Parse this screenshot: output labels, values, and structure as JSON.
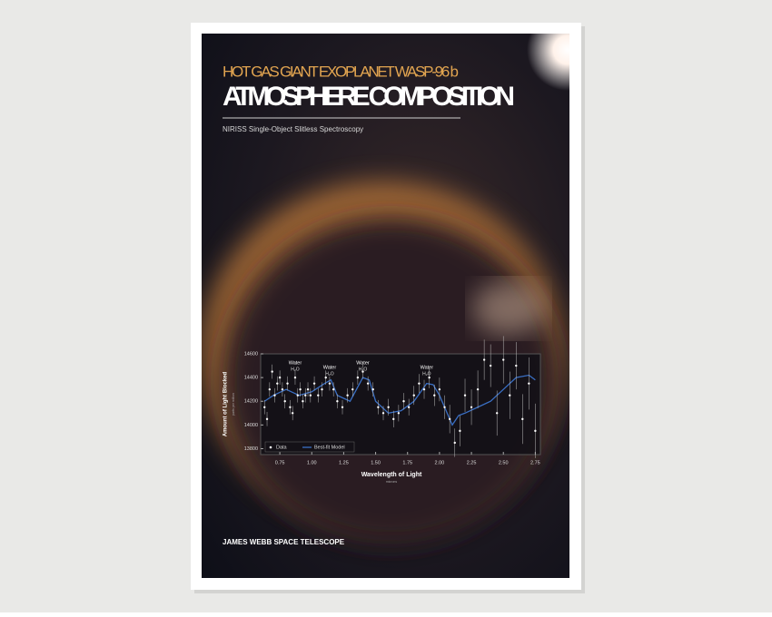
{
  "poster": {
    "supertitle": "HOT GAS GIANT EXOPLANET WASP-96 b",
    "title": "ATMOSPHERE COMPOSITION",
    "subtitle": "NIRISS Single-Object Slitless Spectroscopy",
    "footer": "JAMES WEBB SPACE TELESCOPE"
  },
  "chart_data": {
    "type": "scatter",
    "y_label": "Amount of Light Blocked",
    "y_sublabel": "parts per million",
    "x_label": "Wavelength of Light",
    "x_sublabel": "microns",
    "xlim": [
      0.6,
      2.79
    ],
    "ylim": [
      13750,
      14600
    ],
    "xticks": [
      {
        "value": 0.75,
        "label": "0.75"
      },
      {
        "value": 1,
        "label": "1.00"
      },
      {
        "value": 1.25,
        "label": "1.25"
      },
      {
        "value": 1.5,
        "label": "1.50"
      },
      {
        "value": 1.75,
        "label": "1.75"
      },
      {
        "value": 2,
        "label": "2.00"
      },
      {
        "value": 2.25,
        "label": "2.25"
      },
      {
        "value": 2.5,
        "label": "2.50"
      },
      {
        "value": 2.75,
        "label": "2.75"
      }
    ],
    "yticks": [
      13800,
      14000,
      14200,
      14400,
      14600
    ],
    "legend": "lower left",
    "annotations": [
      {
        "label": "Water",
        "sublabel": "H₂O",
        "x": 0.87
      },
      {
        "label": "Water",
        "sublabel": "H₂O",
        "x": 1.14
      },
      {
        "label": "Water",
        "sublabel": "H₂O",
        "x": 1.4
      },
      {
        "label": "Water",
        "sublabel": "H₂O",
        "x": 1.9
      }
    ],
    "series": [
      {
        "name": "Data",
        "color": "#ffffff",
        "x": [
          0.63,
          0.65,
          0.67,
          0.69,
          0.71,
          0.73,
          0.75,
          0.77,
          0.79,
          0.81,
          0.83,
          0.85,
          0.87,
          0.89,
          0.91,
          0.93,
          0.95,
          0.97,
          0.99,
          1.02,
          1.05,
          1.08,
          1.11,
          1.14,
          1.17,
          1.2,
          1.24,
          1.28,
          1.32,
          1.36,
          1.4,
          1.44,
          1.48,
          1.52,
          1.56,
          1.6,
          1.64,
          1.68,
          1.72,
          1.76,
          1.8,
          1.84,
          1.88,
          1.92,
          1.96,
          2.0,
          2.04,
          2.08,
          2.12,
          2.16,
          2.2,
          2.25,
          2.3,
          2.35,
          2.4,
          2.45,
          2.5,
          2.55,
          2.6,
          2.65,
          2.7,
          2.75
        ],
        "values": [
          14150,
          14050,
          14300,
          14450,
          14250,
          14350,
          14400,
          14300,
          14200,
          14350,
          14150,
          14100,
          14400,
          14250,
          14300,
          14200,
          14250,
          14300,
          14250,
          14350,
          14250,
          14300,
          14400,
          14350,
          14300,
          14200,
          14150,
          14250,
          14300,
          14400,
          14450,
          14350,
          14300,
          14150,
          14100,
          14150,
          14050,
          14100,
          14200,
          14150,
          14250,
          14350,
          14300,
          14400,
          14250,
          14300,
          14150,
          14050,
          13850,
          13950,
          14250,
          14150,
          14300,
          14550,
          14500,
          14100,
          14550,
          14250,
          14500,
          14050,
          14350,
          13950
        ],
        "errors": [
          60,
          60,
          60,
          60,
          60,
          60,
          60,
          60,
          60,
          60,
          60,
          60,
          60,
          60,
          60,
          60,
          60,
          60,
          60,
          60,
          60,
          60,
          60,
          60,
          60,
          60,
          60,
          60,
          60,
          60,
          60,
          60,
          60,
          60,
          60,
          70,
          70,
          70,
          70,
          70,
          80,
          80,
          80,
          90,
          90,
          100,
          100,
          120,
          120,
          130,
          140,
          150,
          160,
          170,
          180,
          190,
          200,
          200,
          200,
          210,
          220,
          230
        ]
      },
      {
        "name": "Best-fit Model",
        "color": "#3a6fc4",
        "x": [
          0.63,
          0.7,
          0.8,
          0.9,
          1.0,
          1.1,
          1.15,
          1.2,
          1.3,
          1.4,
          1.45,
          1.5,
          1.6,
          1.7,
          1.8,
          1.9,
          1.95,
          2.0,
          2.1,
          2.15,
          2.2,
          2.3,
          2.4,
          2.5,
          2.6,
          2.7,
          2.75
        ],
        "values": [
          14200,
          14250,
          14300,
          14250,
          14280,
          14350,
          14380,
          14250,
          14200,
          14400,
          14380,
          14200,
          14100,
          14120,
          14200,
          14350,
          14340,
          14250,
          14000,
          14080,
          14100,
          14150,
          14200,
          14300,
          14400,
          14420,
          14380
        ]
      }
    ]
  }
}
